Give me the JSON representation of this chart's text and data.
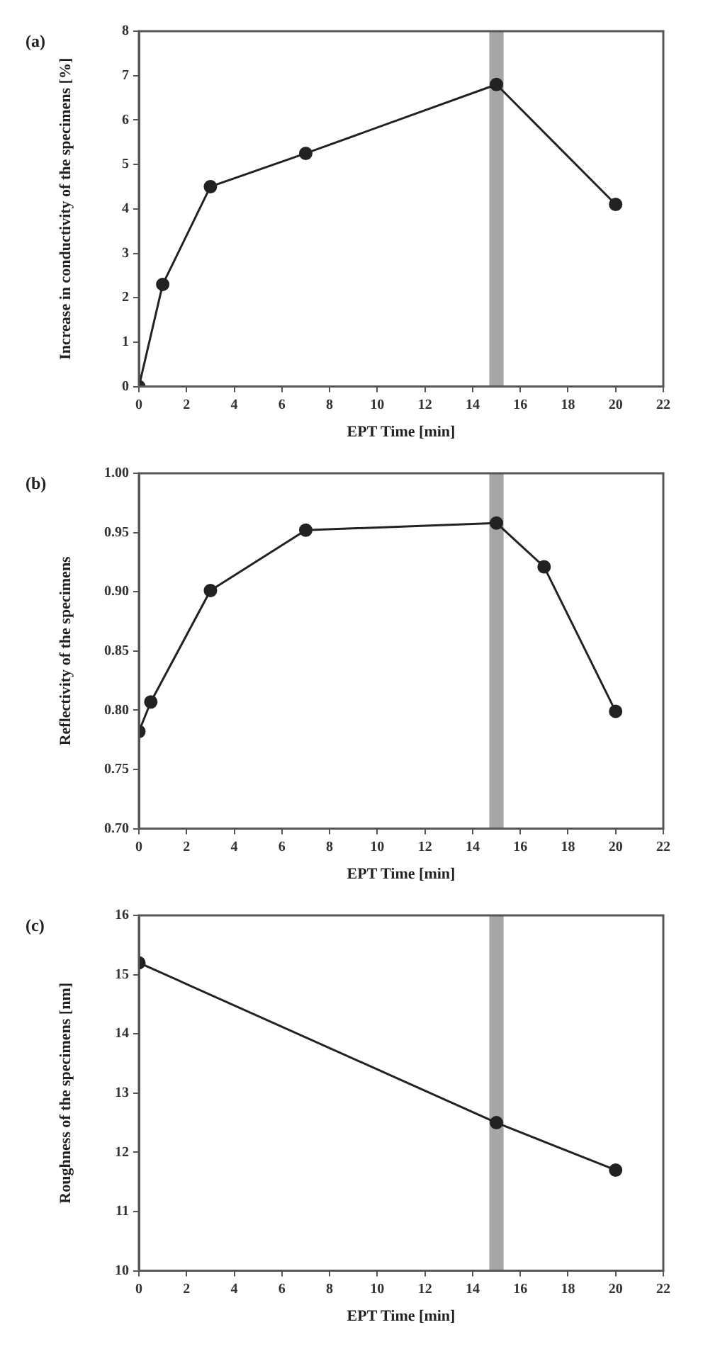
{
  "chart_data": [
    {
      "type": "line",
      "annotations": [
        "(a)"
      ],
      "xlabel": "EPT Time [min]",
      "ylabel": "Increase in conductivity of the specimens [%]",
      "x": [
        0,
        1,
        3,
        7,
        15,
        20
      ],
      "series": [
        {
          "color": "#222222",
          "values": [
            0,
            2.3,
            4.5,
            5.25,
            6.8,
            4.1
          ]
        }
      ],
      "xlim": [
        0,
        22
      ],
      "xticks": [
        0,
        2,
        4,
        6,
        8,
        10,
        12,
        14,
        16,
        18,
        20,
        22
      ],
      "ylim": [
        0,
        8
      ],
      "yticks": [
        0,
        1,
        2,
        3,
        4,
        5,
        6,
        7,
        8
      ],
      "bands": [
        {
          "axis": "x",
          "from": 14.7,
          "to": 15.3,
          "color": "#a6a6a6"
        }
      ],
      "marker": "circle",
      "line_style": "solid"
    },
    {
      "type": "line",
      "annotations": [
        "(b)"
      ],
      "xlabel": "EPT Time [min]",
      "ylabel": "Reflectivity of the specimens",
      "x": [
        0,
        0.5,
        3,
        7,
        15,
        17,
        20
      ],
      "series": [
        {
          "color": "#222222",
          "values": [
            0.782,
            0.807,
            0.901,
            0.952,
            0.958,
            0.921,
            0.799
          ]
        }
      ],
      "xlim": [
        0,
        22
      ],
      "xticks": [
        0,
        2,
        4,
        6,
        8,
        10,
        12,
        14,
        16,
        18,
        20,
        22
      ],
      "ylim": [
        0.7,
        1.0
      ],
      "yticks": [
        {
          "value": 0.7,
          "label": "0.70"
        },
        {
          "value": 0.75,
          "label": "0.75"
        },
        {
          "value": 0.8,
          "label": "0.80"
        },
        {
          "value": 0.85,
          "label": "0.85"
        },
        {
          "value": 0.9,
          "label": "0.90"
        },
        {
          "value": 0.95,
          "label": "0.95"
        },
        {
          "value": 1.0,
          "label": "1.00"
        }
      ],
      "bands": [
        {
          "axis": "x",
          "from": 14.7,
          "to": 15.3,
          "color": "#a6a6a6"
        }
      ],
      "marker": "circle",
      "line_style": "solid"
    },
    {
      "type": "line",
      "annotations": [
        "(c)"
      ],
      "xlabel": "EPT Time [min]",
      "ylabel": "Roughness of the specimens [nm]",
      "x": [
        0,
        15,
        20
      ],
      "series": [
        {
          "color": "#222222",
          "values": [
            15.2,
            12.5,
            11.7
          ]
        }
      ],
      "xlim": [
        0,
        22
      ],
      "xticks": [
        0,
        2,
        4,
        6,
        8,
        10,
        12,
        14,
        16,
        18,
        20,
        22
      ],
      "ylim": [
        10,
        16
      ],
      "yticks": [
        10,
        11,
        12,
        13,
        14,
        15,
        16
      ],
      "bands": [
        {
          "axis": "x",
          "from": 14.7,
          "to": 15.3,
          "color": "#a6a6a6"
        }
      ],
      "marker": "circle",
      "line_style": "solid"
    }
  ]
}
